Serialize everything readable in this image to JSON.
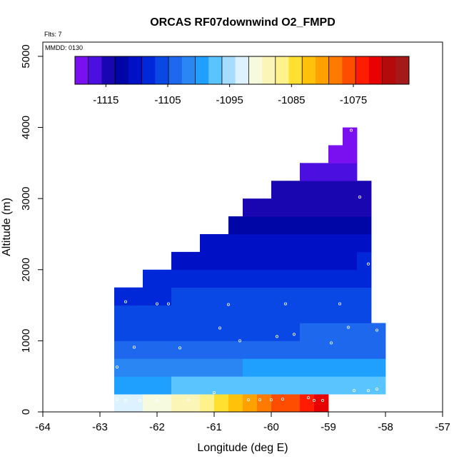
{
  "chart_data": {
    "type": "heatmap",
    "title": "ORCAS RF07downwind O2_FMPD",
    "xlabel": "Longitude (deg E)",
    "ylabel": "Altitude (m)",
    "xlim": [
      -64,
      -57
    ],
    "ylim": [
      0,
      5200
    ],
    "xticks": [
      -64,
      -63,
      -62,
      -61,
      -60,
      -59,
      -58,
      -57
    ],
    "yticks": [
      0,
      1000,
      2000,
      3000,
      4000,
      5000
    ],
    "annotations": {
      "flts": "Flts: 7",
      "mmdd": "MMDD: 0130"
    },
    "colorbar": {
      "min": -1120,
      "max": -1066,
      "ticks": [
        -1115,
        -1105,
        -1095,
        -1085,
        -1075
      ],
      "tick_labels": [
        "-1115",
        "-1105",
        "-1095",
        "-1085",
        "-1075"
      ],
      "colors": [
        "#7a10ef",
        "#4b10e0",
        "#1a06b0",
        "#0006a6",
        "#0010c4",
        "#0028d8",
        "#0a48e6",
        "#1e68ee",
        "#2a86f2",
        "#1fa0ff",
        "#5ac4ff",
        "#a6dcff",
        "#ddf2ff",
        "#f6fbe0",
        "#fbf6b8",
        "#fff28a",
        "#ffdf30",
        "#ffc10a",
        "#ffa200",
        "#ff7a00",
        "#ff4d00",
        "#ff1c00",
        "#e60000",
        "#b50a0a",
        "#a41a1a"
      ]
    },
    "grid_step": {
      "lon": 0.25,
      "alt": 250
    },
    "rows": [
      {
        "alt_bottom": 0,
        "lon_start": -62.75,
        "lon_end": -59.0,
        "values": [
          -1093.5,
          -1092.5,
          -1091.0,
          -1090.0,
          -1089.0,
          -1088.0,
          -1086.5,
          -1084.0,
          -1082.0,
          -1080.0,
          -1078.0,
          -1076.5,
          -1075.0,
          -1073.5,
          -1071.0
        ]
      },
      {
        "alt_bottom": 250,
        "lon_start": -62.75,
        "lon_end": -58.0,
        "values": [
          -1100.0,
          -1099.5,
          -1099.0,
          -1098.5,
          -1098.0,
          -1097.5,
          -1097.5,
          -1097.0,
          -1097.0,
          -1097.0,
          -1097.0,
          -1096.5,
          -1096.5,
          -1096.5,
          -1096.5,
          -1096.5,
          -1096.5,
          -1096.5,
          -1096.5
        ]
      },
      {
        "alt_bottom": 500,
        "lon_start": -62.75,
        "lon_end": -58.0,
        "values": [
          -1102.5,
          -1102.0,
          -1102.0,
          -1101.5,
          -1101.5,
          -1101.5,
          -1101.0,
          -1101.0,
          -1101.0,
          -1100.5,
          -1100.5,
          -1100.5,
          -1100.5,
          -1100.5,
          -1100.5,
          -1100.5,
          -1100.5,
          -1100.5,
          -1100.5
        ]
      },
      {
        "alt_bottom": 750,
        "lon_start": -62.75,
        "lon_end": -58.0,
        "values": [
          -1104.5,
          -1104.0,
          -1104.0,
          -1104.0,
          -1103.5,
          -1103.5,
          -1103.5,
          -1103.0,
          -1103.0,
          -1103.0,
          -1103.0,
          -1103.0,
          -1103.0,
          -1103.0,
          -1103.0,
          -1103.0,
          -1103.0,
          -1103.0,
          -1103.0
        ]
      },
      {
        "alt_bottom": 1000,
        "lon_start": -62.75,
        "lon_end": -58.0,
        "values": [
          -1106.0,
          -1106.0,
          -1106.0,
          -1105.5,
          -1105.5,
          -1105.5,
          -1105.5,
          -1105.0,
          -1105.0,
          -1105.0,
          -1105.0,
          -1105.0,
          -1105.0,
          -1104.5,
          -1104.5,
          -1104.5,
          -1104.5,
          -1104.5,
          -1104.0
        ]
      },
      {
        "alt_bottom": 1250,
        "lon_start": -62.75,
        "lon_end": -58.25,
        "values": [
          -1107.0,
          -1107.0,
          -1106.5,
          -1106.5,
          -1106.5,
          -1106.5,
          -1106.0,
          -1106.0,
          -1106.0,
          -1106.0,
          -1106.0,
          -1106.0,
          -1106.0,
          -1106.0,
          -1106.0,
          -1106.0,
          -1106.0,
          -1106.0
        ]
      },
      {
        "alt_bottom": 1500,
        "lon_start": -62.75,
        "lon_end": -58.25,
        "values": [
          -1107.5,
          -1107.5,
          -1107.5,
          -1107.5,
          -1107.0,
          -1107.0,
          -1107.0,
          -1107.0,
          -1107.0,
          -1107.0,
          -1107.0,
          -1107.0,
          -1107.0,
          -1107.0,
          -1107.0,
          -1107.0,
          -1106.5,
          -1106.5
        ]
      },
      {
        "alt_bottom": 1750,
        "lon_start": -62.25,
        "lon_end": -58.25,
        "values": [
          -1108.5,
          -1108.5,
          -1108.5,
          -1108.0,
          -1108.0,
          -1108.0,
          -1108.0,
          -1108.0,
          -1108.0,
          -1108.0,
          -1108.0,
          -1108.0,
          -1108.0,
          -1108.0,
          -1108.0,
          -1107.5
        ]
      },
      {
        "alt_bottom": 2000,
        "lon_start": -61.75,
        "lon_end": -58.25,
        "values": [
          -1109.5,
          -1109.5,
          -1109.5,
          -1109.5,
          -1109.5,
          -1109.5,
          -1109.5,
          -1109.5,
          -1109.5,
          -1109.5,
          -1109.5,
          -1109.5,
          -1109.5,
          -1108.5
        ]
      },
      {
        "alt_bottom": 2250,
        "lon_start": -61.25,
        "lon_end": -58.25,
        "values": [
          -1111.0,
          -1111.0,
          -1111.0,
          -1111.0,
          -1111.0,
          -1111.0,
          -1111.0,
          -1111.0,
          -1111.0,
          -1111.0,
          -1111.0,
          -1111.0
        ]
      },
      {
        "alt_bottom": 2500,
        "lon_start": -60.75,
        "lon_end": -58.25,
        "values": [
          -1113.0,
          -1113.0,
          -1113.0,
          -1113.0,
          -1113.0,
          -1113.0,
          -1113.0,
          -1113.0,
          -1113.0,
          -1113.0
        ]
      },
      {
        "alt_bottom": 2750,
        "lon_start": -60.5,
        "lon_end": -58.25,
        "values": [
          -1114.5,
          -1114.5,
          -1114.5,
          -1114.5,
          -1114.5,
          -1114.5,
          -1114.5,
          -1114.5,
          -1114.5
        ]
      },
      {
        "alt_bottom": 3000,
        "lon_start": -60.0,
        "lon_end": -58.25,
        "values": [
          -1115.5,
          -1115.5,
          -1115.5,
          -1115.5,
          -1115.5,
          -1115.5,
          -1115.5
        ]
      },
      {
        "alt_bottom": 3250,
        "lon_start": -59.5,
        "lon_end": -58.5,
        "values": [
          -1116.5,
          -1116.5,
          -1116.5,
          -1116.5
        ]
      },
      {
        "alt_bottom": 3500,
        "lon_start": -59.0,
        "lon_end": -58.5,
        "values": [
          -1118.0,
          -1118.0
        ]
      },
      {
        "alt_bottom": 3750,
        "lon_start": -58.75,
        "lon_end": -58.5,
        "values": [
          -1119.5
        ]
      }
    ],
    "sample_points": [
      {
        "lon": -58.6,
        "alt": 3960
      },
      {
        "lon": -58.45,
        "alt": 3020
      },
      {
        "lon": -58.3,
        "alt": 2080
      },
      {
        "lon": -62.55,
        "alt": 1550
      },
      {
        "lon": -62.0,
        "alt": 1520
      },
      {
        "lon": -61.8,
        "alt": 1520
      },
      {
        "lon": -60.75,
        "alt": 1510
      },
      {
        "lon": -59.75,
        "alt": 1520
      },
      {
        "lon": -58.8,
        "alt": 1520
      },
      {
        "lon": -60.9,
        "alt": 1180
      },
      {
        "lon": -58.65,
        "alt": 1190
      },
      {
        "lon": -58.15,
        "alt": 1150
      },
      {
        "lon": -59.6,
        "alt": 1090
      },
      {
        "lon": -59.9,
        "alt": 1060
      },
      {
        "lon": -60.55,
        "alt": 1000
      },
      {
        "lon": -58.95,
        "alt": 970
      },
      {
        "lon": -62.4,
        "alt": 910
      },
      {
        "lon": -61.6,
        "alt": 900
      },
      {
        "lon": -62.7,
        "alt": 630
      },
      {
        "lon": -58.55,
        "alt": 300
      },
      {
        "lon": -58.3,
        "alt": 300
      },
      {
        "lon": -58.15,
        "alt": 320
      },
      {
        "lon": -61.0,
        "alt": 270
      },
      {
        "lon": -59.35,
        "alt": 200
      },
      {
        "lon": -59.8,
        "alt": 180
      },
      {
        "lon": -60.0,
        "alt": 170
      },
      {
        "lon": -60.4,
        "alt": 170
      },
      {
        "lon": -60.2,
        "alt": 170
      },
      {
        "lon": -59.25,
        "alt": 160
      },
      {
        "lon": -59.1,
        "alt": 160
      },
      {
        "lon": -62.7,
        "alt": 180
      },
      {
        "lon": -62.55,
        "alt": 160
      },
      {
        "lon": -62.3,
        "alt": 160
      },
      {
        "lon": -62.0,
        "alt": 160
      },
      {
        "lon": -61.45,
        "alt": 170
      }
    ]
  }
}
